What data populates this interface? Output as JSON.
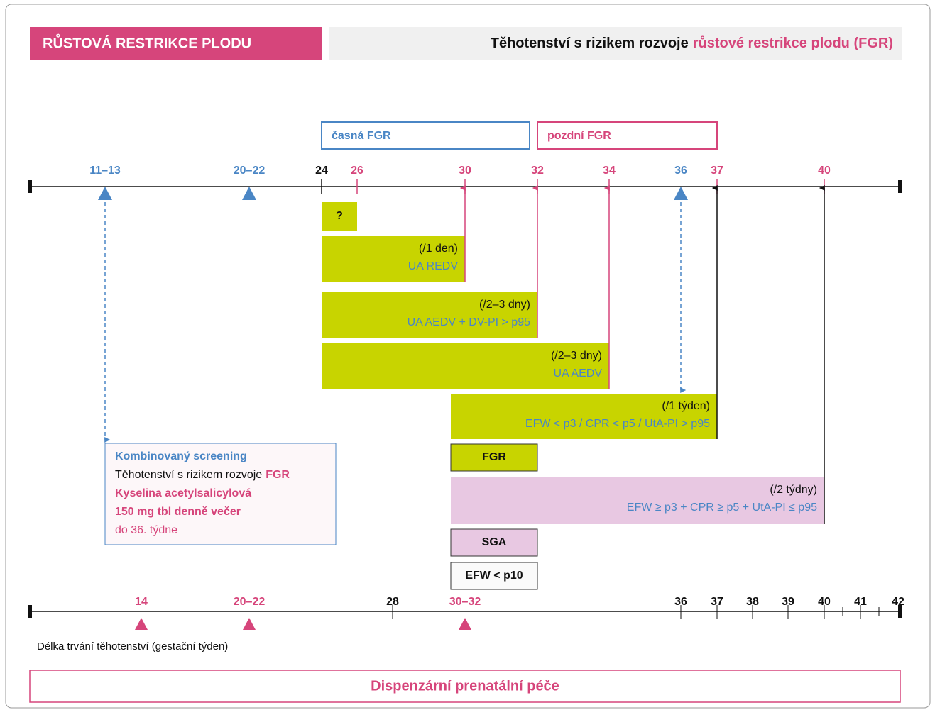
{
  "header": {
    "title": "RŮSTOVÁ RESTRIKCE PLODU",
    "subtitle": "Těhotenství s rizikem rozvoje",
    "subtitle_highlight": "růstové restrikce plodu (FGR)"
  },
  "phases": [
    "časná FGR",
    "pozdní FGR"
  ],
  "top_axis": [
    "11–13",
    "20–22",
    "24",
    "26",
    "30",
    "32",
    "34",
    "36",
    "37",
    "40"
  ],
  "bars": [
    {
      "label": "?"
    },
    {
      "interval": "(/1 den)",
      "criteria": "UA REDV"
    },
    {
      "interval": "(/2–3 dny)",
      "criteria": "UA AEDV + DV-PI > p95"
    },
    {
      "interval": "(/2–3 dny)",
      "criteria": "UA AEDV"
    },
    {
      "interval": "(/1 týden)",
      "criteria": "EFW < p3 / CPR < p5 / UtA-PI > p95"
    },
    {
      "interval": "(/2 týdny)",
      "criteria": "EFW ≥ p3 + CPR ≥ p5 + UtA-PI ≤ p95"
    }
  ],
  "boxes": [
    "FGR",
    "SGA",
    "EFW < p10"
  ],
  "screening": {
    "title": "Kombinovaný screening",
    "line1": "Těhotenství s rizikem rozvoje",
    "line1_highlight": "FGR",
    "line2": "Kyselina acetylsalicylová",
    "line3": "150 mg tbl denně večer",
    "line4": "do 36. týdne"
  },
  "bottom_axis": [
    "14",
    "20–22",
    "28",
    "30–32",
    "36",
    "37",
    "38",
    "39",
    "40",
    "41",
    "42"
  ],
  "axis_label": "Délka trvání těhotenství (gestační týden)",
  "footer": "Dispenzární prenatální péče"
}
